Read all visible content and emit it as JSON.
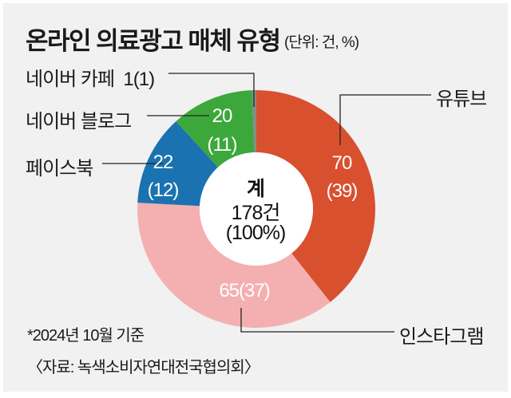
{
  "chart_data": {
    "type": "pie",
    "variant": "donut",
    "title": "온라인 의료광고 매체 유형",
    "unit": "(단위: 건, %)",
    "slices": [
      {
        "label": "유튜브",
        "value": 70,
        "percent": 39,
        "value_text": "70",
        "percent_text": "(39)",
        "color": "#d9502f"
      },
      {
        "label": "인스타그램",
        "value": 65,
        "percent": 37,
        "value_text": "65(37)",
        "color": "#f4b0b1"
      },
      {
        "label": "페이스북",
        "value": 22,
        "percent": 12,
        "value_text": "22",
        "percent_text": "(12)",
        "color": "#1a73b0"
      },
      {
        "label": "네이버 블로그",
        "value": 20,
        "percent": 11,
        "value_text": "20",
        "percent_text": "(11)",
        "color": "#3ca83b"
      },
      {
        "label": "네이버 카페",
        "value": 1,
        "percent": 1,
        "value_text": "1(1)",
        "color": "#8a8a8a"
      }
    ],
    "center": {
      "line1": "계",
      "line2": "178건",
      "line3": "(100%)"
    },
    "total": 178
  },
  "footnote": "*2024년 10월 기준",
  "source": "〈자료: 녹색소비자연대전국협의회〉"
}
